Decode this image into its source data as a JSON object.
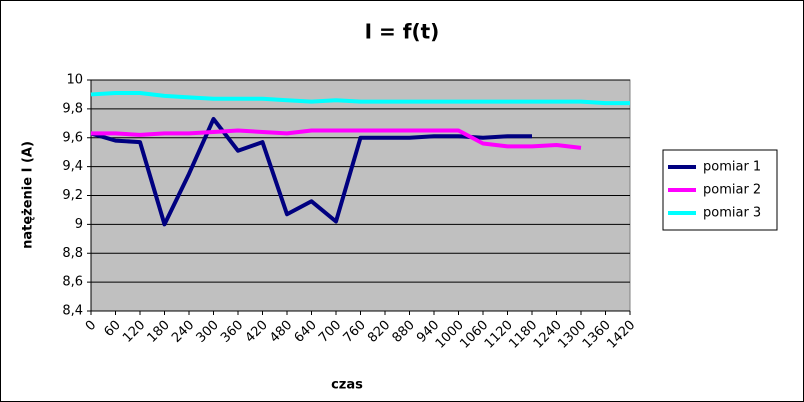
{
  "chart_data": {
    "type": "line",
    "title": "I = f(t)",
    "x_label": "czas",
    "y_label": "natężenie I (A)",
    "categories": [
      "0",
      "60",
      "120",
      "180",
      "240",
      "300",
      "360",
      "420",
      "480",
      "640",
      "700",
      "760",
      "820",
      "880",
      "940",
      "1000",
      "1060",
      "1120",
      "1180",
      "1240",
      "1300",
      "1360",
      "1420"
    ],
    "series": [
      {
        "name": "pomiar 1",
        "color": "#000080",
        "values": [
          9.63,
          9.58,
          9.57,
          9.0,
          9.35,
          9.73,
          9.51,
          9.57,
          9.07,
          9.16,
          9.02,
          9.6,
          9.6,
          9.6,
          9.61,
          9.61,
          9.6,
          9.61,
          9.61,
          null,
          null,
          null,
          null
        ]
      },
      {
        "name": "pomiar 2",
        "color": "#ff00ff",
        "values": [
          9.63,
          9.63,
          9.62,
          9.63,
          9.63,
          9.64,
          9.65,
          9.64,
          9.63,
          9.65,
          9.65,
          9.65,
          9.65,
          9.65,
          9.65,
          9.65,
          9.56,
          9.54,
          9.54,
          9.55,
          9.53,
          null,
          null
        ]
      },
      {
        "name": "pomiar 3",
        "color": "#00ffff",
        "values": [
          9.9,
          9.91,
          9.91,
          9.89,
          9.88,
          9.87,
          9.87,
          9.87,
          9.86,
          9.85,
          9.86,
          9.85,
          9.85,
          9.85,
          9.85,
          9.85,
          9.85,
          9.85,
          9.85,
          9.85,
          9.85,
          9.84,
          9.84
        ]
      }
    ],
    "ylim": [
      8.4,
      10
    ],
    "yticks": [
      {
        "value": 8.4,
        "label": "8,4"
      },
      {
        "value": 8.6,
        "label": "8,6"
      },
      {
        "value": 8.8,
        "label": "8,8"
      },
      9,
      {
        "value": 9.2,
        "label": "9,2"
      },
      {
        "value": 9.4,
        "label": "9,4"
      },
      {
        "value": 9.6,
        "label": "9,6"
      },
      {
        "value": 9.8,
        "label": "9,8"
      },
      10
    ],
    "grid": true,
    "plot_background": "#c0c0c0",
    "legend_position": "right"
  }
}
